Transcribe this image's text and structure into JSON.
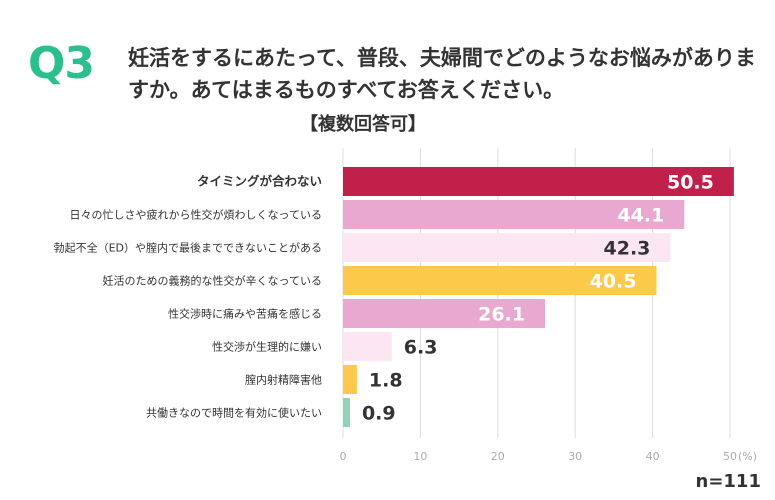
{
  "question": {
    "label": "Q3",
    "text": "妊活をするにあたって、普段、夫婦間でどのようなお悩みがありますか。あてはまるものすべてお答えください。",
    "sub": "【複数回答可】"
  },
  "colors": {
    "accent": "#2bbf8e",
    "text": "#333333",
    "grid": "#dddddd",
    "tick": "#aaaaaa"
  },
  "sample_size": "n=111",
  "chart_data": {
    "type": "bar",
    "orientation": "horizontal",
    "title": "妊活をするにあたって、普段、夫婦間でどのようなお悩みがありますか。あてはまるものすべてお答えください。",
    "categories": [
      "タイミングが合わない",
      "日々の忙しさや疲れから性交が煩わしくなっている",
      "勃起不全（ED）や膣内で最後までできないことがある",
      "妊活のための義務的な性交が辛くなっている",
      "性交渉時に痛みや苦痛を感じる",
      "性交渉が生理的に嫌い",
      "膣内射精障害他",
      "共働きなので時間を有効に使いたい"
    ],
    "values": [
      50.5,
      44.1,
      42.3,
      40.5,
      26.1,
      6.3,
      1.8,
      0.9
    ],
    "value_labels": [
      "50.5",
      "44.1",
      "42.3",
      "40.5",
      "26.1",
      "6.3",
      "1.8",
      "0.9"
    ],
    "bar_colors": [
      "#c0204a",
      "#e8a8cf",
      "#fce6f2",
      "#fdc94a",
      "#e8a8cf",
      "#fce6f2",
      "#fdc94a",
      "#8fd3b8"
    ],
    "label_colors": [
      "#ffffff",
      "#ffffff",
      "#333333",
      "#ffffff",
      "#ffffff",
      "#333333",
      "#333333",
      "#333333"
    ],
    "label_inside": [
      true,
      true,
      true,
      true,
      true,
      false,
      false,
      false
    ],
    "xlim": [
      0,
      50
    ],
    "xticks": [
      0,
      10,
      20,
      30,
      40,
      50
    ],
    "xtick_labels": [
      "0",
      "10",
      "20",
      "30",
      "40",
      "50"
    ],
    "unit_label": "(%)",
    "xlabel": "",
    "ylabel": "",
    "grid": true
  }
}
